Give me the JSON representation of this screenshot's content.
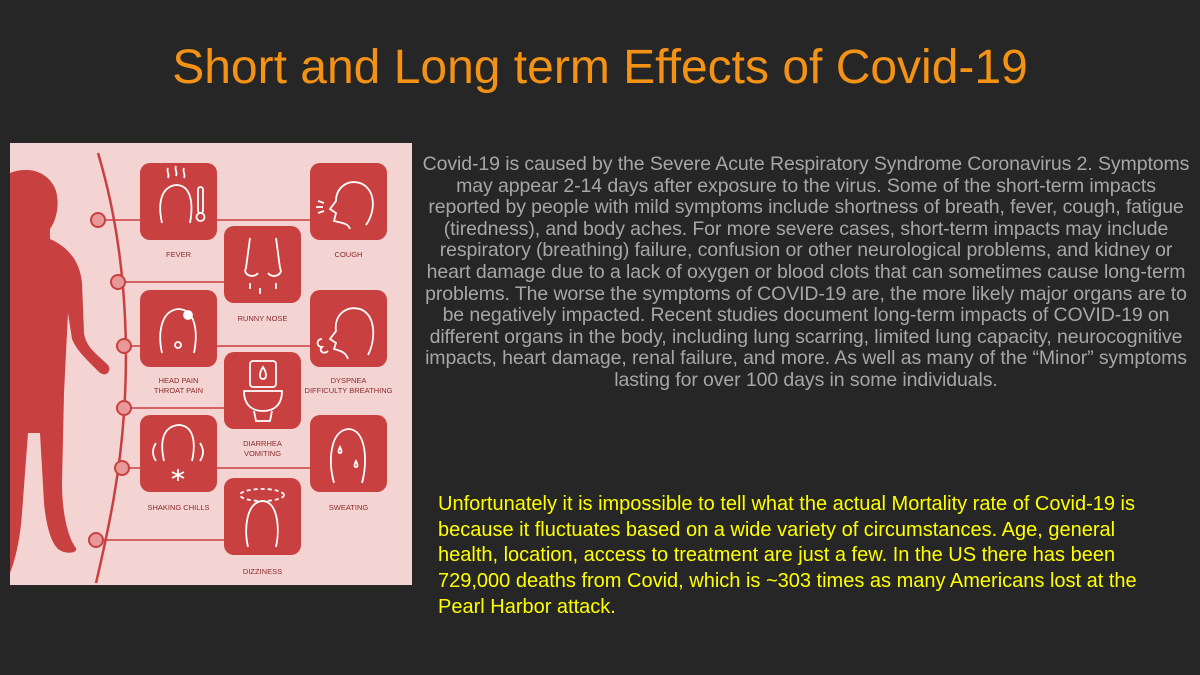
{
  "title": "Short and Long term Effects of Covid-19",
  "infographic": {
    "colors": {
      "background": "#f4d3d3",
      "accent": "#c94040",
      "icon": "#ffffff",
      "label": "#8b2b2b"
    },
    "symptoms": [
      {
        "label": "FEVER",
        "icon": "fever-thermometer-icon"
      },
      {
        "label": "COUGH",
        "icon": "cough-face-icon"
      },
      {
        "label": "RUNNY NOSE",
        "icon": "runny-nose-icon"
      },
      {
        "label_line1": "HEAD PAIN",
        "label_line2": "THROAT PAIN",
        "icon": "head-pain-icon"
      },
      {
        "label_line1": "DYSPNEA",
        "label_line2": "DIFFICULTY BREATHING",
        "icon": "dyspnea-icon"
      },
      {
        "label_line1": "DIARRHEA",
        "label_line2": "VOMITING",
        "icon": "toilet-icon"
      },
      {
        "label": "SHAKING CHILLS",
        "icon": "shaking-chills-icon"
      },
      {
        "label": "SWEATING",
        "icon": "sweating-face-icon"
      },
      {
        "label": "DIZZINESS",
        "icon": "dizziness-icon"
      }
    ]
  },
  "body_text": "Covid-19 is caused by the Severe Acute Respiratory Syndrome Coronavirus 2. Symptoms may appear 2-14 days after exposure to the virus. Some of the short-term impacts reported by people with mild symptoms include shortness of breath, fever, cough, fatigue (tiredness), and body aches. For more severe cases, short-term impacts may include respiratory (breathing) failure, confusion or other neurological problems, and kidney or heart damage due to a lack of oxygen or blood clots that can sometimes cause long-term problems. The worse the symptoms of COVID-19 are, the more likely major organs are to be negatively impacted. Recent studies document long-term impacts of COVID-19 on different organs in the body, including lung scarring, limited lung capacity, neurocognitive impacts, heart damage, renal failure, and more. As well as many of the “Minor” symptoms lasting for over 100 days in some individuals.",
  "mortality_text": "Unfortunately it is impossible to tell what the actual Mortality rate of Covid-19 is because it fluctuates based on a wide variety of circumstances. Age, general health, location, access to treatment are just a few. In the US there has been 729,000 deaths from Covid, which is ~303 times as many Americans lost at the Pearl Harbor attack."
}
